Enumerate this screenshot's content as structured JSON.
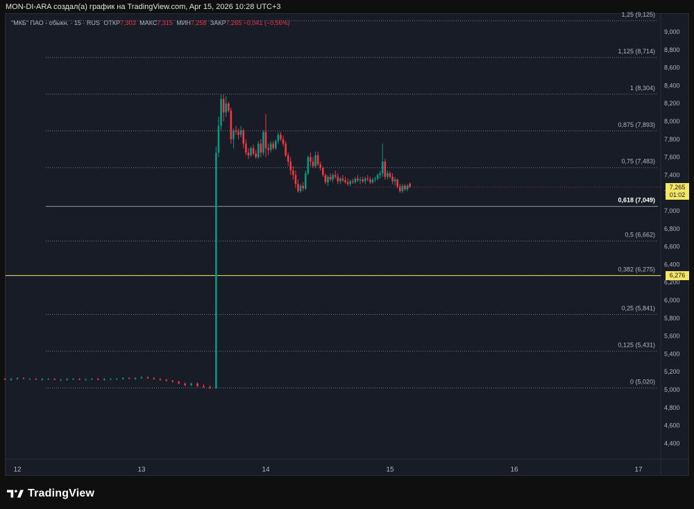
{
  "header_text": "MON-DI-ARA создал(а) график на TradingView.com, Apr 15, 2026 10:28 UTC+3",
  "legend": {
    "symbol": "\"МКБ\" ПАО - обыкн. · 15 · RUS",
    "open_label": "ОТКР",
    "open": "7,303",
    "high_label": "МАКС",
    "high": "7,315",
    "low_label": "МИН",
    "low": "7,258",
    "close_label": "ЗАКР",
    "close": "7,265",
    "change": "−0,041 (−0,56%)"
  },
  "price_tag": {
    "price": "7,265",
    "timer": "01:02",
    "color": "#f5e663"
  },
  "line_tag": {
    "price": "6,276",
    "color": "#f5e663"
  },
  "brand": "TradingView",
  "colors": {
    "up": "#089981",
    "down": "#f23645",
    "hline": "#f5e663",
    "grid": "#2a2e39",
    "fib": "#787b86"
  },
  "chart_data": {
    "type": "candlestick",
    "title": "",
    "y_ticks": [
      "4,400",
      "4,600",
      "4,800",
      "5,000",
      "5,200",
      "5,400",
      "5,600",
      "5,800",
      "6,000",
      "6,200",
      "6,400",
      "6,600",
      "6,800",
      "7,000",
      "7,200",
      "7,400",
      "7,600",
      "7,800",
      "8,000",
      "8,200",
      "8,400",
      "8,600",
      "8,800",
      "9,000"
    ],
    "y_tick_values": [
      4.4,
      4.6,
      4.8,
      5.0,
      5.2,
      5.4,
      5.6,
      5.8,
      6.0,
      6.2,
      6.4,
      6.6,
      6.8,
      7.0,
      7.2,
      7.4,
      7.6,
      7.8,
      8.0,
      8.2,
      8.4,
      8.6,
      8.8,
      9.0
    ],
    "x_ticks": [
      {
        "label": "12",
        "day": 12
      },
      {
        "label": "13",
        "day": 13
      },
      {
        "label": "14",
        "day": 14
      },
      {
        "label": "15",
        "day": 15
      },
      {
        "label": "16",
        "day": 16
      },
      {
        "label": "17",
        "day": 17
      }
    ],
    "fib_levels": [
      {
        "level": "1,25",
        "price": 9.125,
        "label": "1,25 (9,125)"
      },
      {
        "level": "1,125",
        "price": 8.714,
        "label": "1,125 (8,714)"
      },
      {
        "level": "1",
        "price": 8.304,
        "label": "1 (8,304)"
      },
      {
        "level": "0,875",
        "price": 7.893,
        "label": "0,875 (7,893)"
      },
      {
        "level": "0,75",
        "price": 7.483,
        "label": "0,75 (7,483)"
      },
      {
        "level": "0,618",
        "price": 7.049,
        "label": "0,618 (7,049)",
        "highlight": true
      },
      {
        "level": "0,5",
        "price": 6.662,
        "label": "0,5 (6,662)"
      },
      {
        "level": "0,382",
        "price": 6.275,
        "label": "0,382 (6,275)"
      },
      {
        "level": "0,25",
        "price": 5.841,
        "label": "0,25 (5,841)"
      },
      {
        "level": "0,125",
        "price": 5.431,
        "label": "0,125 (5,431)"
      },
      {
        "level": "0",
        "price": 5.02,
        "label": "0 (5,020)"
      }
    ],
    "horizontal_line": 6.276,
    "last_price": 7.265,
    "candles": [
      {
        "t": 11.85,
        "o": 5.12,
        "h": 5.13,
        "l": 5.11,
        "c": 5.12
      },
      {
        "t": 11.9,
        "o": 5.12,
        "h": 5.13,
        "l": 5.11,
        "c": 5.11
      },
      {
        "t": 11.95,
        "o": 5.11,
        "h": 5.13,
        "l": 5.1,
        "c": 5.12
      },
      {
        "t": 12.0,
        "o": 5.12,
        "h": 5.14,
        "l": 5.11,
        "c": 5.13
      },
      {
        "t": 12.05,
        "o": 5.13,
        "h": 5.14,
        "l": 5.12,
        "c": 5.12
      },
      {
        "t": 12.1,
        "o": 5.12,
        "h": 5.13,
        "l": 5.11,
        "c": 5.12
      },
      {
        "t": 12.15,
        "o": 5.12,
        "h": 5.13,
        "l": 5.11,
        "c": 5.11
      },
      {
        "t": 12.2,
        "o": 5.11,
        "h": 5.13,
        "l": 5.1,
        "c": 5.12
      },
      {
        "t": 12.25,
        "o": 5.12,
        "h": 5.13,
        "l": 5.11,
        "c": 5.12
      },
      {
        "t": 12.3,
        "o": 5.12,
        "h": 5.13,
        "l": 5.11,
        "c": 5.11
      },
      {
        "t": 12.35,
        "o": 5.11,
        "h": 5.12,
        "l": 5.1,
        "c": 5.11
      },
      {
        "t": 12.4,
        "o": 5.11,
        "h": 5.13,
        "l": 5.1,
        "c": 5.12
      },
      {
        "t": 12.45,
        "o": 5.12,
        "h": 5.13,
        "l": 5.11,
        "c": 5.12
      },
      {
        "t": 12.5,
        "o": 5.12,
        "h": 5.13,
        "l": 5.11,
        "c": 5.11
      },
      {
        "t": 12.55,
        "o": 5.11,
        "h": 5.12,
        "l": 5.1,
        "c": 5.12
      },
      {
        "t": 12.6,
        "o": 5.12,
        "h": 5.13,
        "l": 5.11,
        "c": 5.12
      },
      {
        "t": 12.65,
        "o": 5.12,
        "h": 5.13,
        "l": 5.11,
        "c": 5.11
      },
      {
        "t": 12.7,
        "o": 5.11,
        "h": 5.13,
        "l": 5.1,
        "c": 5.12
      },
      {
        "t": 12.75,
        "o": 5.12,
        "h": 5.13,
        "l": 5.11,
        "c": 5.12
      },
      {
        "t": 12.8,
        "o": 5.12,
        "h": 5.13,
        "l": 5.11,
        "c": 5.12
      },
      {
        "t": 12.85,
        "o": 5.12,
        "h": 5.14,
        "l": 5.11,
        "c": 5.13
      },
      {
        "t": 12.9,
        "o": 5.13,
        "h": 5.14,
        "l": 5.12,
        "c": 5.12
      },
      {
        "t": 12.95,
        "o": 5.12,
        "h": 5.14,
        "l": 5.11,
        "c": 5.13
      },
      {
        "t": 13.0,
        "o": 5.13,
        "h": 5.15,
        "l": 5.12,
        "c": 5.14
      },
      {
        "t": 13.05,
        "o": 5.14,
        "h": 5.15,
        "l": 5.12,
        "c": 5.13
      },
      {
        "t": 13.1,
        "o": 5.13,
        "h": 5.14,
        "l": 5.11,
        "c": 5.12
      },
      {
        "t": 13.15,
        "o": 5.12,
        "h": 5.13,
        "l": 5.1,
        "c": 5.11
      },
      {
        "t": 13.2,
        "o": 5.11,
        "h": 5.12,
        "l": 5.09,
        "c": 5.1
      },
      {
        "t": 13.25,
        "o": 5.1,
        "h": 5.11,
        "l": 5.08,
        "c": 5.09
      },
      {
        "t": 13.3,
        "o": 5.09,
        "h": 5.1,
        "l": 5.06,
        "c": 5.07
      },
      {
        "t": 13.35,
        "o": 5.07,
        "h": 5.08,
        "l": 5.04,
        "c": 5.05
      },
      {
        "t": 13.4,
        "o": 5.05,
        "h": 5.08,
        "l": 5.04,
        "c": 5.07
      },
      {
        "t": 13.45,
        "o": 5.07,
        "h": 5.08,
        "l": 5.03,
        "c": 5.04
      },
      {
        "t": 13.5,
        "o": 5.04,
        "h": 5.06,
        "l": 5.02,
        "c": 5.03
      },
      {
        "t": 13.55,
        "o": 5.03,
        "h": 5.05,
        "l": 5.01,
        "c": 5.02
      },
      {
        "t": 13.6,
        "o": 5.02,
        "h": 7.72,
        "l": 5.01,
        "c": 7.65
      },
      {
        "t": 13.62,
        "o": 7.65,
        "h": 8.05,
        "l": 7.6,
        "c": 7.95
      },
      {
        "t": 13.64,
        "o": 7.95,
        "h": 8.3,
        "l": 7.9,
        "c": 8.25
      },
      {
        "t": 13.66,
        "o": 8.25,
        "h": 8.3,
        "l": 8.0,
        "c": 8.1
      },
      {
        "t": 13.68,
        "o": 8.1,
        "h": 8.28,
        "l": 8.05,
        "c": 8.2
      },
      {
        "t": 13.7,
        "o": 8.2,
        "h": 8.22,
        "l": 8.1,
        "c": 8.12
      },
      {
        "t": 13.72,
        "o": 8.12,
        "h": 8.15,
        "l": 7.75,
        "c": 7.8
      },
      {
        "t": 13.74,
        "o": 7.8,
        "h": 7.92,
        "l": 7.7,
        "c": 7.9
      },
      {
        "t": 13.76,
        "o": 7.9,
        "h": 7.95,
        "l": 7.85,
        "c": 7.88
      },
      {
        "t": 13.78,
        "o": 7.88,
        "h": 7.92,
        "l": 7.8,
        "c": 7.85
      },
      {
        "t": 13.8,
        "o": 7.85,
        "h": 7.95,
        "l": 7.82,
        "c": 7.9
      },
      {
        "t": 13.82,
        "o": 7.9,
        "h": 7.92,
        "l": 7.7,
        "c": 7.75
      },
      {
        "t": 13.84,
        "o": 7.75,
        "h": 7.8,
        "l": 7.62,
        "c": 7.65
      },
      {
        "t": 13.86,
        "o": 7.65,
        "h": 7.7,
        "l": 7.58,
        "c": 7.62
      },
      {
        "t": 13.88,
        "o": 7.62,
        "h": 7.72,
        "l": 7.6,
        "c": 7.7
      },
      {
        "t": 13.9,
        "o": 7.7,
        "h": 7.74,
        "l": 7.62,
        "c": 7.64
      },
      {
        "t": 13.92,
        "o": 7.64,
        "h": 7.68,
        "l": 7.58,
        "c": 7.6
      },
      {
        "t": 13.94,
        "o": 7.6,
        "h": 7.78,
        "l": 7.58,
        "c": 7.75
      },
      {
        "t": 13.96,
        "o": 7.75,
        "h": 7.8,
        "l": 7.6,
        "c": 7.65
      },
      {
        "t": 13.98,
        "o": 7.65,
        "h": 7.9,
        "l": 7.62,
        "c": 7.88
      },
      {
        "t": 14.0,
        "o": 7.88,
        "h": 8.08,
        "l": 7.6,
        "c": 7.7
      },
      {
        "t": 14.02,
        "o": 7.7,
        "h": 7.75,
        "l": 7.62,
        "c": 7.68
      },
      {
        "t": 14.04,
        "o": 7.68,
        "h": 7.78,
        "l": 7.65,
        "c": 7.75
      },
      {
        "t": 14.06,
        "o": 7.75,
        "h": 7.78,
        "l": 7.68,
        "c": 7.7
      },
      {
        "t": 14.08,
        "o": 7.7,
        "h": 7.8,
        "l": 7.68,
        "c": 7.78
      },
      {
        "t": 14.1,
        "o": 7.78,
        "h": 7.88,
        "l": 7.75,
        "c": 7.85
      },
      {
        "t": 14.12,
        "o": 7.85,
        "h": 7.88,
        "l": 7.78,
        "c": 7.8
      },
      {
        "t": 14.14,
        "o": 7.8,
        "h": 7.84,
        "l": 7.72,
        "c": 7.75
      },
      {
        "t": 14.16,
        "o": 7.75,
        "h": 7.78,
        "l": 7.6,
        "c": 7.62
      },
      {
        "t": 14.18,
        "o": 7.62,
        "h": 7.65,
        "l": 7.5,
        "c": 7.55
      },
      {
        "t": 14.2,
        "o": 7.55,
        "h": 7.6,
        "l": 7.4,
        "c": 7.45
      },
      {
        "t": 14.22,
        "o": 7.45,
        "h": 7.5,
        "l": 7.35,
        "c": 7.4
      },
      {
        "t": 14.24,
        "o": 7.4,
        "h": 7.45,
        "l": 7.25,
        "c": 7.3
      },
      {
        "t": 14.26,
        "o": 7.3,
        "h": 7.35,
        "l": 7.2,
        "c": 7.22
      },
      {
        "t": 14.28,
        "o": 7.22,
        "h": 7.3,
        "l": 7.2,
        "c": 7.28
      },
      {
        "t": 14.3,
        "o": 7.28,
        "h": 7.32,
        "l": 7.22,
        "c": 7.25
      },
      {
        "t": 14.32,
        "o": 7.25,
        "h": 7.45,
        "l": 7.23,
        "c": 7.42
      },
      {
        "t": 14.34,
        "o": 7.42,
        "h": 7.62,
        "l": 7.4,
        "c": 7.6
      },
      {
        "t": 14.36,
        "o": 7.6,
        "h": 7.65,
        "l": 7.5,
        "c": 7.55
      },
      {
        "t": 14.38,
        "o": 7.55,
        "h": 7.6,
        "l": 7.48,
        "c": 7.5
      },
      {
        "t": 14.4,
        "o": 7.5,
        "h": 7.66,
        "l": 7.48,
        "c": 7.62
      },
      {
        "t": 14.42,
        "o": 7.62,
        "h": 7.66,
        "l": 7.5,
        "c": 7.52
      },
      {
        "t": 14.44,
        "o": 7.52,
        "h": 7.55,
        "l": 7.45,
        "c": 7.48
      },
      {
        "t": 14.46,
        "o": 7.48,
        "h": 7.5,
        "l": 7.38,
        "c": 7.4
      },
      {
        "t": 14.48,
        "o": 7.4,
        "h": 7.42,
        "l": 7.3,
        "c": 7.32
      },
      {
        "t": 14.5,
        "o": 7.32,
        "h": 7.4,
        "l": 7.28,
        "c": 7.38
      },
      {
        "t": 14.52,
        "o": 7.38,
        "h": 7.42,
        "l": 7.33,
        "c": 7.35
      },
      {
        "t": 14.54,
        "o": 7.35,
        "h": 7.42,
        "l": 7.32,
        "c": 7.4
      },
      {
        "t": 14.56,
        "o": 7.4,
        "h": 7.45,
        "l": 7.36,
        "c": 7.38
      },
      {
        "t": 14.58,
        "o": 7.38,
        "h": 7.42,
        "l": 7.3,
        "c": 7.33
      },
      {
        "t": 14.6,
        "o": 7.33,
        "h": 7.38,
        "l": 7.3,
        "c": 7.36
      },
      {
        "t": 14.62,
        "o": 7.36,
        "h": 7.4,
        "l": 7.32,
        "c": 7.34
      },
      {
        "t": 14.64,
        "o": 7.34,
        "h": 7.38,
        "l": 7.3,
        "c": 7.32
      },
      {
        "t": 14.66,
        "o": 7.32,
        "h": 7.36,
        "l": 7.28,
        "c": 7.3
      },
      {
        "t": 14.68,
        "o": 7.3,
        "h": 7.35,
        "l": 7.27,
        "c": 7.33
      },
      {
        "t": 14.7,
        "o": 7.33,
        "h": 7.36,
        "l": 7.3,
        "c": 7.32
      },
      {
        "t": 14.72,
        "o": 7.32,
        "h": 7.38,
        "l": 7.3,
        "c": 7.36
      },
      {
        "t": 14.74,
        "o": 7.36,
        "h": 7.4,
        "l": 7.32,
        "c": 7.34
      },
      {
        "t": 14.76,
        "o": 7.34,
        "h": 7.38,
        "l": 7.3,
        "c": 7.35
      },
      {
        "t": 14.78,
        "o": 7.35,
        "h": 7.38,
        "l": 7.31,
        "c": 7.33
      },
      {
        "t": 14.8,
        "o": 7.33,
        "h": 7.38,
        "l": 7.3,
        "c": 7.36
      },
      {
        "t": 14.82,
        "o": 7.36,
        "h": 7.4,
        "l": 7.33,
        "c": 7.35
      },
      {
        "t": 14.84,
        "o": 7.35,
        "h": 7.38,
        "l": 7.3,
        "c": 7.32
      },
      {
        "t": 14.86,
        "o": 7.32,
        "h": 7.37,
        "l": 7.3,
        "c": 7.35
      },
      {
        "t": 14.88,
        "o": 7.35,
        "h": 7.38,
        "l": 7.32,
        "c": 7.36
      },
      {
        "t": 14.9,
        "o": 7.36,
        "h": 7.42,
        "l": 7.34,
        "c": 7.4
      },
      {
        "t": 14.92,
        "o": 7.4,
        "h": 7.45,
        "l": 7.36,
        "c": 7.42
      },
      {
        "t": 14.94,
        "o": 7.42,
        "h": 7.75,
        "l": 7.38,
        "c": 7.55
      },
      {
        "t": 14.96,
        "o": 7.55,
        "h": 7.58,
        "l": 7.35,
        "c": 7.38
      },
      {
        "t": 14.98,
        "o": 7.38,
        "h": 7.45,
        "l": 7.35,
        "c": 7.42
      },
      {
        "t": 15.0,
        "o": 7.42,
        "h": 7.44,
        "l": 7.36,
        "c": 7.38
      },
      {
        "t": 15.02,
        "o": 7.38,
        "h": 7.42,
        "l": 7.3,
        "c": 7.33
      },
      {
        "t": 15.04,
        "o": 7.33,
        "h": 7.38,
        "l": 7.28,
        "c": 7.35
      },
      {
        "t": 15.06,
        "o": 7.35,
        "h": 7.36,
        "l": 7.25,
        "c": 7.27
      },
      {
        "t": 15.08,
        "o": 7.27,
        "h": 7.3,
        "l": 7.2,
        "c": 7.22
      },
      {
        "t": 15.1,
        "o": 7.22,
        "h": 7.3,
        "l": 7.2,
        "c": 7.28
      },
      {
        "t": 15.12,
        "o": 7.28,
        "h": 7.3,
        "l": 7.22,
        "c": 7.24
      },
      {
        "t": 15.14,
        "o": 7.24,
        "h": 7.3,
        "l": 7.22,
        "c": 7.28
      },
      {
        "t": 15.16,
        "o": 7.303,
        "h": 7.315,
        "l": 7.258,
        "c": 7.265
      }
    ]
  }
}
